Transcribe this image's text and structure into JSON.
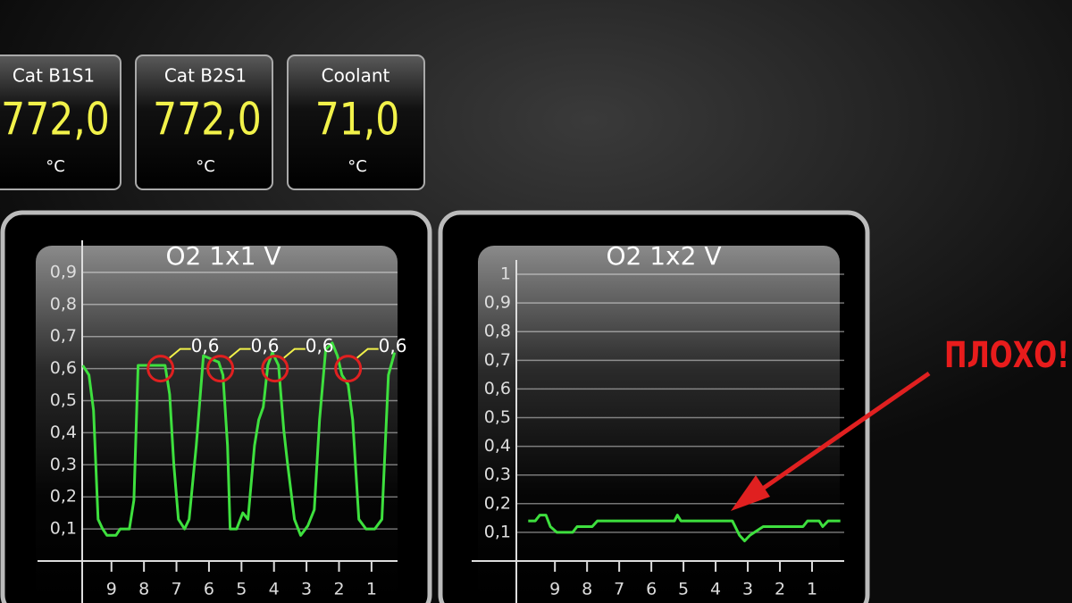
{
  "gauges": [
    {
      "label": "Cat B1S1",
      "value": "772,0",
      "unit": "°C"
    },
    {
      "label": "Cat B2S1",
      "value": "772,0",
      "unit": "°C"
    },
    {
      "label": "Coolant",
      "value": "71,0",
      "unit": "°C"
    }
  ],
  "callout": "ПЛОХО!",
  "chart_data": [
    {
      "type": "line",
      "title": "O2 1x1 V",
      "x": [
        9.88,
        9.69,
        9.55,
        9.41,
        9.27,
        9.14,
        8.86,
        8.73,
        8.45,
        8.31,
        8.18,
        7.9,
        7.35,
        7.21,
        7.08,
        6.94,
        6.75,
        6.61,
        6.39,
        6.17,
        5.7,
        5.57,
        5.43,
        5.35,
        5.15,
        4.96,
        4.8,
        4.6,
        4.47,
        4.33,
        4.19,
        4.05,
        3.86,
        3.7,
        3.59,
        3.37,
        3.18,
        2.96,
        2.76,
        2.6,
        2.41,
        2.21,
        2.05,
        1.91,
        1.72,
        1.58,
        1.39,
        1.17,
        0.9,
        0.68,
        0.48,
        0.29
      ],
      "series": [
        {
          "color": "#3ee03e",
          "values": [
            0.61,
            0.58,
            0.47,
            0.13,
            0.1,
            0.08,
            0.08,
            0.1,
            0.1,
            0.19,
            0.61,
            0.61,
            0.61,
            0.52,
            0.3,
            0.13,
            0.1,
            0.13,
            0.36,
            0.64,
            0.62,
            0.58,
            0.36,
            0.1,
            0.1,
            0.15,
            0.13,
            0.36,
            0.44,
            0.48,
            0.61,
            0.65,
            0.61,
            0.41,
            0.31,
            0.13,
            0.08,
            0.11,
            0.16,
            0.44,
            0.66,
            0.68,
            0.64,
            0.58,
            0.55,
            0.44,
            0.13,
            0.1,
            0.1,
            0.13,
            0.58,
            0.65
          ]
        }
      ],
      "annotations": [
        {
          "x": 7.49,
          "value": 0.6,
          "label": "0,6"
        },
        {
          "x": 5.65,
          "value": 0.6,
          "label": "0,6"
        },
        {
          "x": 3.97,
          "value": 0.6,
          "label": "0,6"
        },
        {
          "x": 1.72,
          "value": 0.6,
          "label": "0,6"
        }
      ],
      "xlim": [
        9.9,
        0.2
      ],
      "xticks": [
        9,
        8,
        7,
        6,
        5,
        4,
        3,
        2,
        1
      ],
      "ylim": [
        0,
        1
      ],
      "yticks": [
        {
          "value": 0.1,
          "label": "0,1"
        },
        {
          "value": 0.2,
          "label": "0,2"
        },
        {
          "value": 0.3,
          "label": "0,3"
        },
        {
          "value": 0.4,
          "label": "0,4"
        },
        {
          "value": 0.5,
          "label": "0,5"
        },
        {
          "value": 0.6,
          "label": "0,6"
        },
        {
          "value": 0.7,
          "label": "0,7"
        },
        {
          "value": 0.8,
          "label": "0,8"
        },
        {
          "value": 0.9,
          "label": "0,9"
        }
      ],
      "grid": true
    },
    {
      "type": "line",
      "title": "O2 1x2 V",
      "x": [
        9.83,
        9.61,
        9.47,
        9.28,
        9.14,
        8.94,
        8.45,
        8.31,
        7.84,
        7.68,
        5.28,
        5.19,
        5.08,
        3.48,
        3.26,
        3.1,
        2.93,
        2.66,
        2.52,
        1.28,
        1.14,
        0.78,
        0.67,
        0.5,
        0.12
      ],
      "series": [
        {
          "color": "#3ee03e",
          "values": [
            0.14,
            0.14,
            0.16,
            0.16,
            0.12,
            0.1,
            0.1,
            0.12,
            0.12,
            0.14,
            0.14,
            0.16,
            0.14,
            0.14,
            0.09,
            0.07,
            0.09,
            0.11,
            0.12,
            0.12,
            0.14,
            0.14,
            0.12,
            0.14,
            0.14
          ]
        }
      ],
      "xlim": [
        10.2,
        0
      ],
      "xticks": [
        9,
        8,
        7,
        6,
        5,
        4,
        3,
        2,
        1
      ],
      "ylim": [
        0,
        1.05
      ],
      "yticks": [
        {
          "value": 0.1,
          "label": "0,1"
        },
        {
          "value": 0.2,
          "label": "0,2"
        },
        {
          "value": 0.3,
          "label": "0,3"
        },
        {
          "value": 0.4,
          "label": "0,4"
        },
        {
          "value": 0.5,
          "label": "0,5"
        },
        {
          "value": 0.6,
          "label": "0,6"
        },
        {
          "value": 0.7,
          "label": "0,7"
        },
        {
          "value": 0.8,
          "label": "0,8"
        },
        {
          "value": 0.9,
          "label": "0,9"
        },
        1
      ],
      "grid": true
    }
  ]
}
